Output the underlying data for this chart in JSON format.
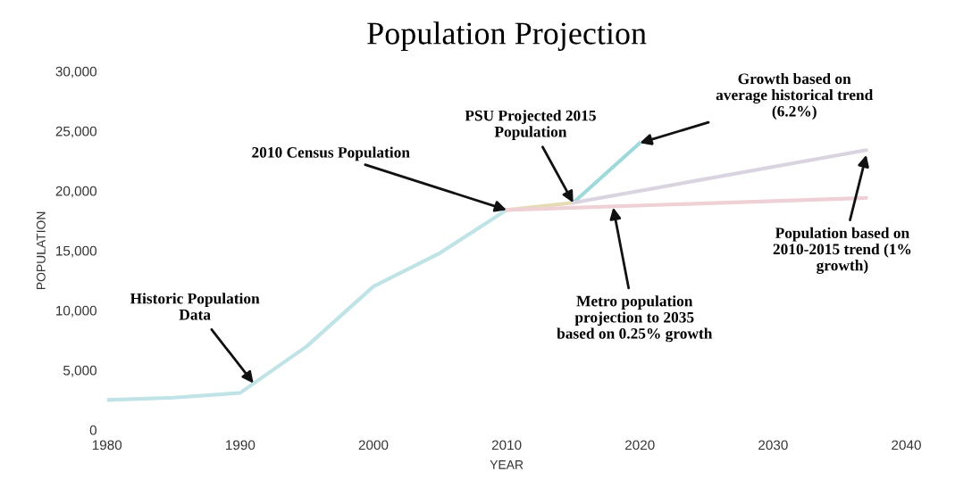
{
  "chart_data": {
    "type": "line",
    "title": "Population Projection",
    "xlabel": "YEAR",
    "ylabel": "POPULATION",
    "xlim": [
      1980,
      2040
    ],
    "xticks": [
      1980,
      1990,
      2000,
      2010,
      2020,
      2030,
      2040
    ],
    "ylim": [
      0,
      30000
    ],
    "yticks": [
      {
        "value": 0,
        "label": "0"
      },
      {
        "value": 5000,
        "label": "5,000"
      },
      {
        "value": 10000,
        "label": "10,000"
      },
      {
        "value": 15000,
        "label": "15,000"
      },
      {
        "value": 20000,
        "label": "20,000"
      },
      {
        "value": 25000,
        "label": "25,000"
      },
      {
        "value": 30000,
        "label": "30,000"
      }
    ],
    "grid": false,
    "legend": false,
    "marker": "none",
    "line_style": "solid",
    "series": [
      {
        "color": "#bfe3e6",
        "x": [
          1980,
          1985,
          1990,
          1995,
          2000,
          2005,
          2010
        ],
        "values": [
          2500,
          2700,
          3100,
          7000,
          12000,
          14800,
          18400
        ]
      },
      {
        "color": "#e6dcb4",
        "x": [
          2010,
          2015
        ],
        "values": [
          18400,
          19000
        ]
      },
      {
        "color": "#9ed9dc",
        "x": [
          2015,
          2020
        ],
        "values": [
          19000,
          24000
        ]
      },
      {
        "color": "#d9d4df",
        "x": [
          2015,
          2037
        ],
        "values": [
          19000,
          23400
        ]
      },
      {
        "color": "#efd0d4",
        "x": [
          2010,
          2037
        ],
        "values": [
          18400,
          19400
        ]
      }
    ],
    "annotations": [
      {
        "text": "Historic Population\nData",
        "x": 1991,
        "y": 3900
      },
      {
        "text": "2010 Census Population",
        "x": 2010,
        "y": 18400
      },
      {
        "text": "PSU Projected 2015\nPopulation",
        "x": 2015,
        "y": 19000
      },
      {
        "text": "Growth based on\naverage historical trend\n(6.2%)",
        "x": 2020,
        "y": 24000
      },
      {
        "text": "Population based on\n2010-2015 trend (1%\ngrowth)",
        "x": 2037,
        "y": 23000
      },
      {
        "text": "Metro population\nprojection to 2035\nbased on 0.25% growth",
        "x": 2018,
        "y": 18600
      }
    ]
  }
}
